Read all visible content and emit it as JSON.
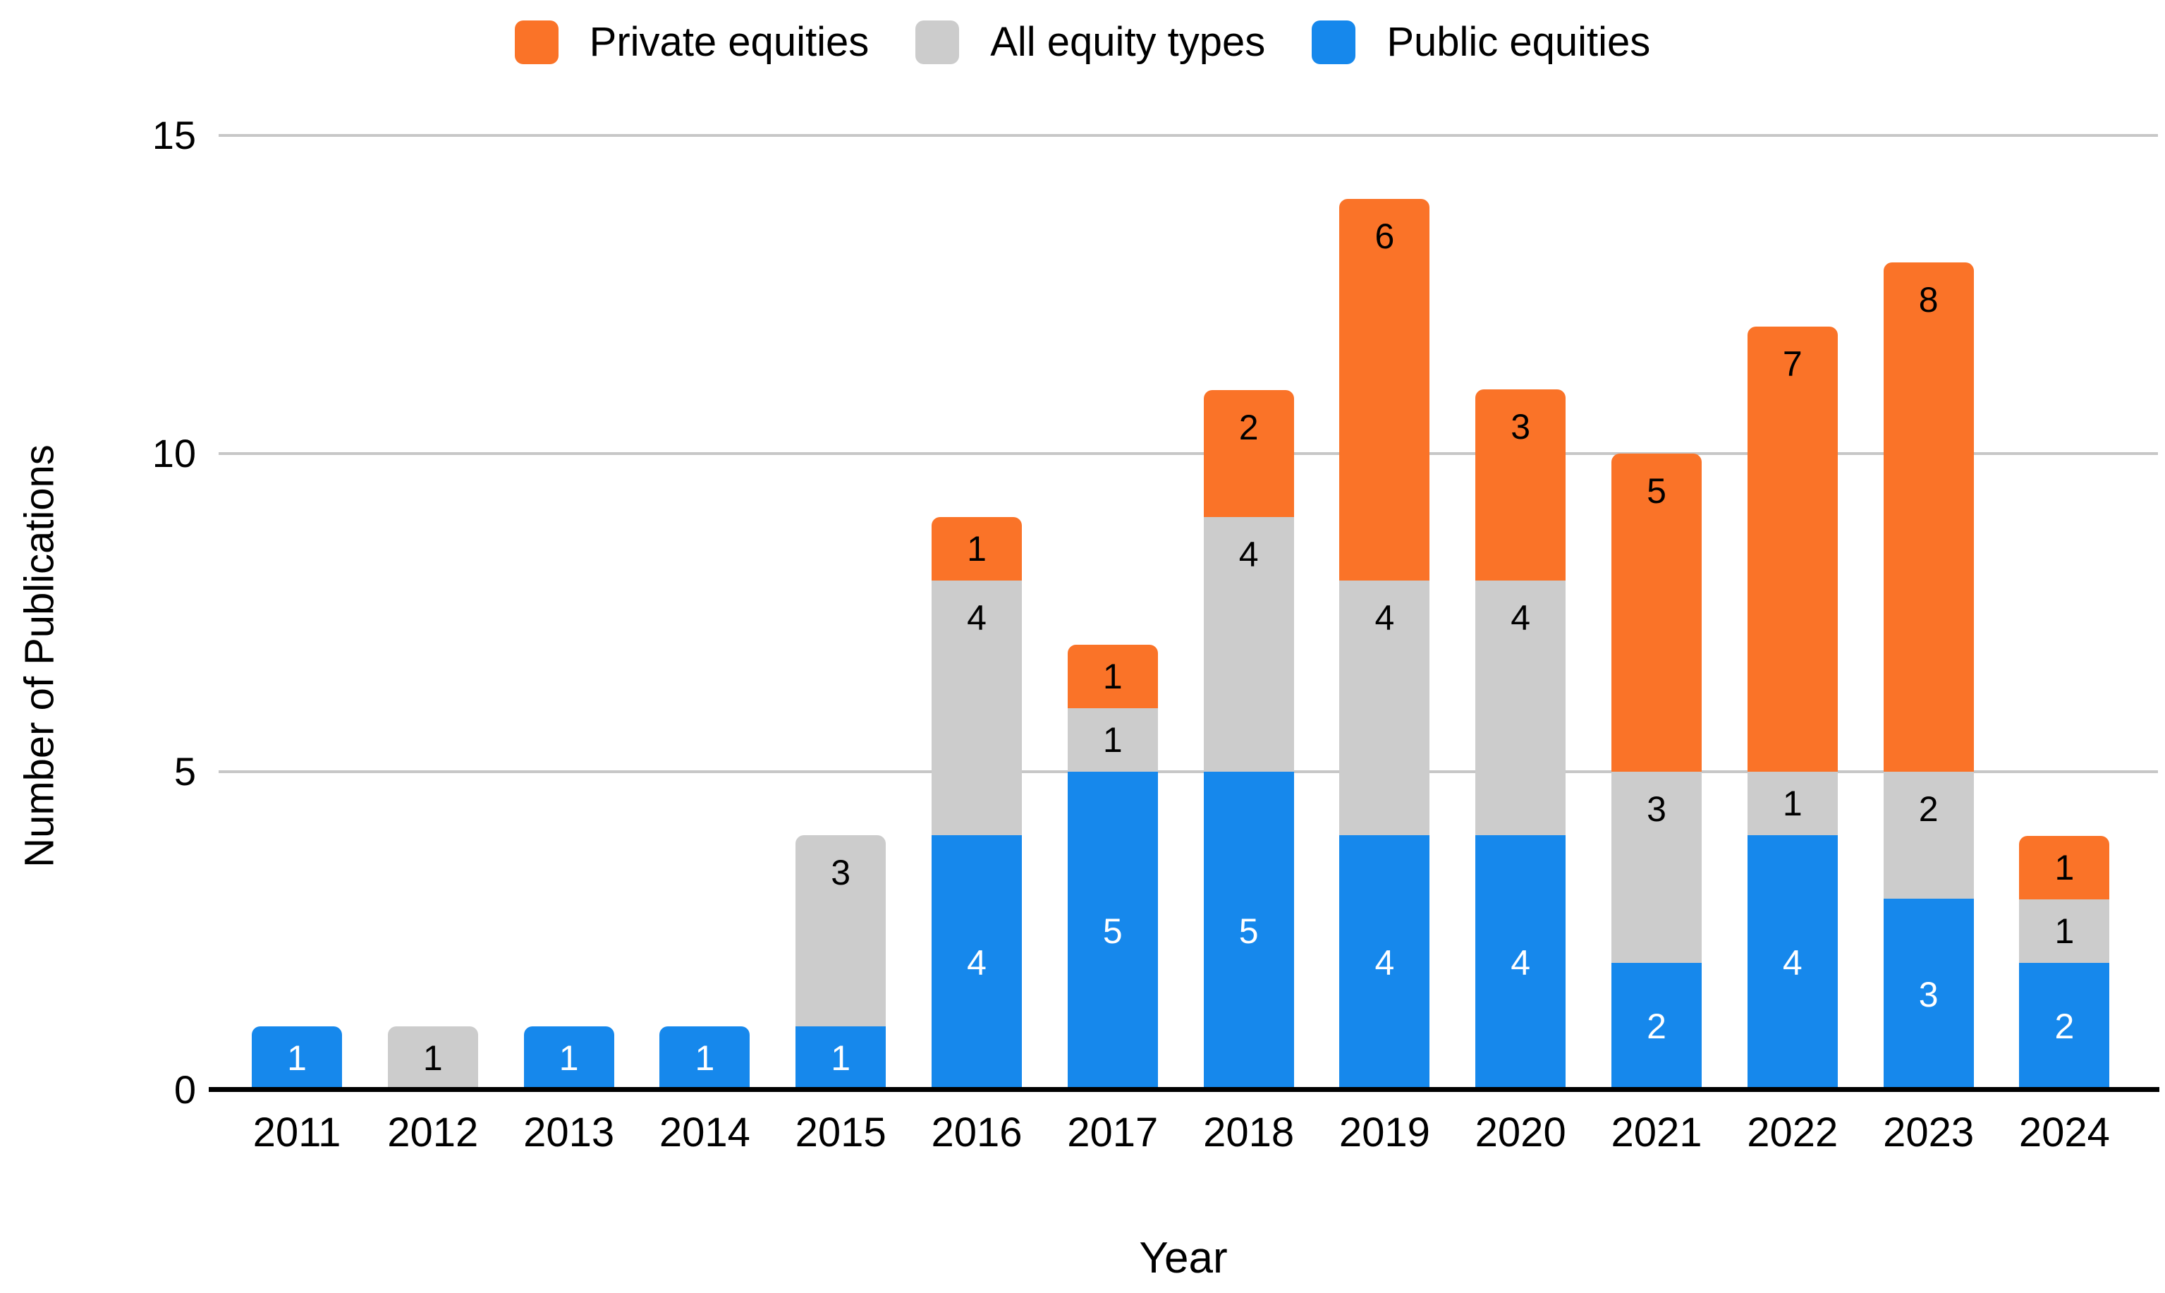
{
  "chart_data": {
    "type": "bar",
    "stacked": true,
    "title": "",
    "xlabel": "Year",
    "ylabel": "Number of Publications",
    "ylim": [
      0,
      15
    ],
    "yticks": [
      0,
      5,
      10,
      15
    ],
    "grid": {
      "show": true,
      "color": "#C7C7C7"
    },
    "axis_line_color": "#000000",
    "legend_position": "top",
    "categories": [
      "2011",
      "2012",
      "2013",
      "2014",
      "2015",
      "2016",
      "2017",
      "2018",
      "2019",
      "2020",
      "2021",
      "2022",
      "2023",
      "2024"
    ],
    "series": [
      {
        "name": "Public equities",
        "color": "#1688EC",
        "label_color": "#FFFFFF",
        "values": [
          1,
          0,
          1,
          1,
          1,
          4,
          5,
          5,
          4,
          4,
          2,
          4,
          3,
          2
        ]
      },
      {
        "name": "All equity types",
        "color": "#CCCCCC",
        "label_color": "#000000",
        "values": [
          0,
          1,
          0,
          0,
          3,
          4,
          1,
          4,
          4,
          4,
          3,
          1,
          2,
          1
        ]
      },
      {
        "name": "Private equities",
        "color": "#FA7328",
        "label_color": "#000000",
        "values": [
          0,
          0,
          0,
          0,
          0,
          1,
          1,
          2,
          6,
          3,
          5,
          7,
          8,
          1
        ]
      }
    ],
    "totals": [
      1,
      1,
      1,
      1,
      4,
      9,
      7,
      11,
      14,
      11,
      10,
      12,
      13,
      4
    ],
    "legend": {
      "items": [
        {
          "label": "Private equities",
          "color": "#FA7328"
        },
        {
          "label": "All equity types",
          "color": "#CCCCCC"
        },
        {
          "label": "Public equities",
          "color": "#1688EC"
        }
      ]
    }
  }
}
